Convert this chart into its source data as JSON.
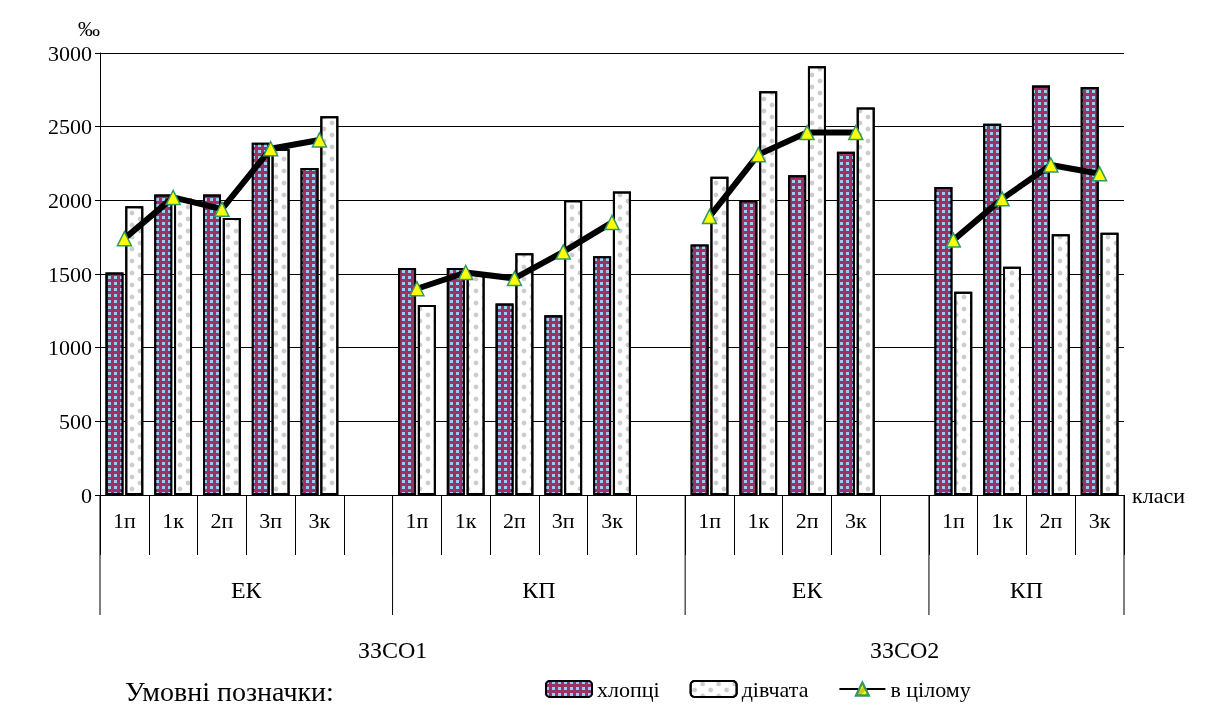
{
  "chart_data": {
    "type": "bar",
    "xlabel": "класи",
    "ylabel": "‰",
    "legend_title": "Умовні позначки:",
    "categories": [
      "1п",
      "1к",
      "2п",
      "3п",
      "3к",
      null,
      "1п",
      "1к",
      "2п",
      "3п",
      "3к",
      null,
      "1п",
      "1к",
      "2п",
      "3к",
      null,
      "1п",
      "1к",
      "2п",
      "3к"
    ],
    "series": [
      {
        "name": "хлопці",
        "color": "#993366",
        "values": [
          1510,
          2040,
          2040,
          2390,
          2220,
          null,
          1540,
          1540,
          1300,
          1220,
          1620,
          null,
          1700,
          2000,
          2170,
          2330,
          null,
          2090,
          2520,
          2780,
          2770
        ]
      },
      {
        "name": "дівчата",
        "color": "#ffffff",
        "values": [
          1960,
          2010,
          1880,
          2350,
          2570,
          null,
          1290,
          1500,
          1640,
          2000,
          2060,
          null,
          2160,
          2740,
          2910,
          2630,
          null,
          1380,
          1550,
          1770,
          1780
        ]
      },
      {
        "name": "в цілому",
        "type": "line",
        "color": "#000000",
        "marker": "triangle",
        "values": [
          1740,
          2020,
          1940,
          2350,
          2410,
          null,
          1400,
          1510,
          1470,
          1650,
          1850,
          null,
          1890,
          2310,
          2460,
          2460,
          null,
          1730,
          2010,
          2240,
          2180
        ]
      }
    ],
    "annotations": [
      "ЕК",
      "КП",
      "ЕК",
      "КП",
      "ЗЗСО1",
      "ЗЗСО2"
    ],
    "ylim": [
      0,
      3000
    ],
    "yticks": [
      0,
      500,
      1000,
      1500,
      2000,
      2500,
      3000
    ],
    "grid": "y",
    "legend": "bottom"
  }
}
